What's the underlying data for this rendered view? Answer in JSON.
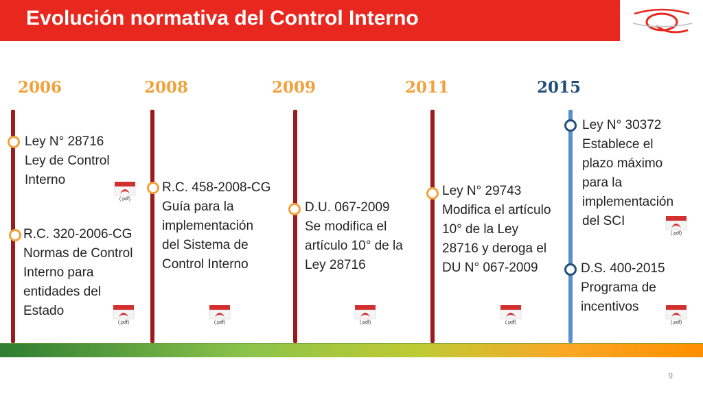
{
  "title": "Evolución normativa del Control Interno",
  "colors": {
    "brand_red": "#e8271f",
    "year_orange": "#f2a13a",
    "year_blue": "#1f4e79"
  },
  "years": [
    {
      "label": "2006"
    },
    {
      "label": "2008"
    },
    {
      "label": "2009"
    },
    {
      "label": "2011"
    },
    {
      "label": "2015"
    }
  ],
  "items": {
    "y2006_a": [
      "Ley N° 28716",
      "Ley de Control",
      "Interno"
    ],
    "y2006_b": [
      "R.C. 320-2006-CG",
      "Normas de Control",
      "Interno para",
      "entidades del",
      "Estado"
    ],
    "y2008": [
      "R.C. 458-2008-CG",
      "Guía para la",
      "implementación",
      "del Sistema de",
      "Control Interno"
    ],
    "y2009": [
      "D.U. 067-2009",
      "Se modifica el",
      "artículo 10° de la",
      "Ley 28716"
    ],
    "y2011": [
      "Ley N° 29743",
      "Modifica el artículo",
      "10° de la Ley",
      "28716 y deroga el",
      "DU N° 067-2009"
    ],
    "y2015_a": [
      "Ley N° 30372",
      "Establece  el",
      "plazo máximo",
      "para la",
      "implementación",
      "del SCI"
    ],
    "y2015_b": [
      "D.S. 400-2015",
      "Programa de",
      "incentivos"
    ]
  },
  "pdf_label": "(.pdf)",
  "page_number": "9"
}
